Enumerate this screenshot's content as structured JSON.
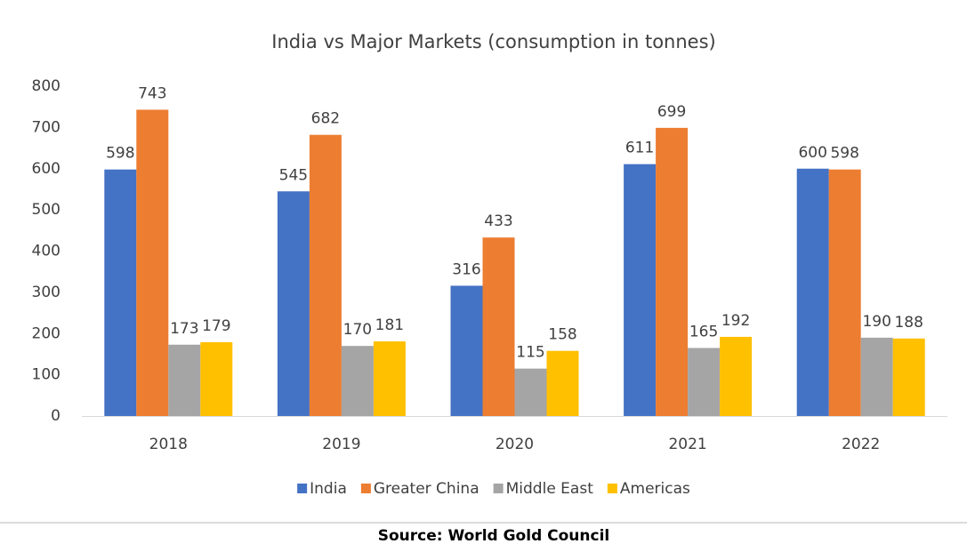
{
  "chart_data": {
    "type": "bar",
    "title": "India vs Major Markets (consumption in tonnes)",
    "categories": [
      "2018",
      "2019",
      "2020",
      "2021",
      "2022"
    ],
    "series": [
      {
        "name": "India",
        "color": "#4472c4",
        "values": [
          598,
          545,
          316,
          611,
          600
        ]
      },
      {
        "name": "Greater China",
        "color": "#ed7d31",
        "values": [
          743,
          682,
          433,
          699,
          598
        ]
      },
      {
        "name": "Middle East",
        "color": "#a5a5a5",
        "values": [
          173,
          170,
          115,
          165,
          190
        ]
      },
      {
        "name": "Americas",
        "color": "#ffc000",
        "values": [
          179,
          181,
          158,
          192,
          188
        ]
      }
    ],
    "ylim": [
      0,
      800
    ],
    "yticks": [
      0,
      100,
      200,
      300,
      400,
      500,
      600,
      700,
      800
    ],
    "grid": false,
    "legend": "bottom"
  },
  "source": "Source: World Gold Council"
}
